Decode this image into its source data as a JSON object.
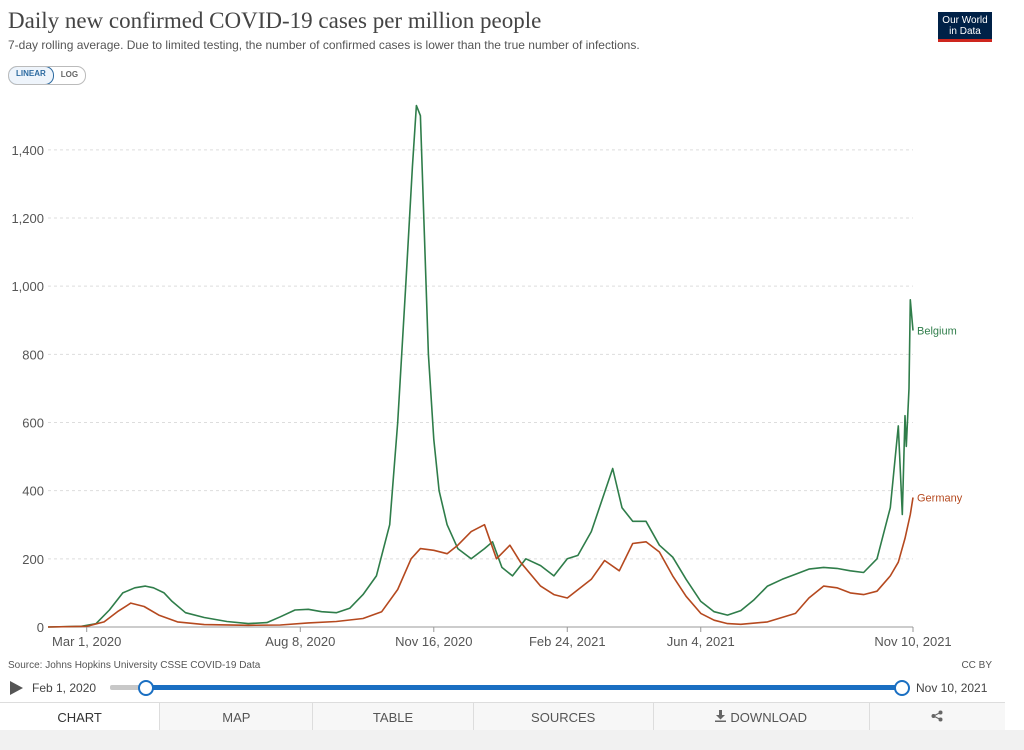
{
  "header": {
    "title": "Daily new confirmed COVID-19 cases per million people",
    "subtitle": "7-day rolling average. Due to limited testing, the number of confirmed cases is lower than the true number of infections.",
    "logo": "Our World in Data"
  },
  "scale_toggle": {
    "linear": "LINEAR",
    "log": "LOG",
    "selected": "LINEAR"
  },
  "footer": {
    "source": "Source: Johns Hopkins University CSSE COVID-19 Data",
    "license": "CC BY"
  },
  "timeline": {
    "start_label": "Feb 1, 2020",
    "end_label": "Nov 10, 2021"
  },
  "tabs": {
    "chart": "CHART",
    "map": "MAP",
    "table": "TABLE",
    "sources": "SOURCES",
    "download": "DOWNLOAD"
  },
  "colors": {
    "belgium": "#2f7d4a",
    "germany": "#b5491f",
    "grid": "#dddddd",
    "accent": "#1a6fc2"
  },
  "chart_data": {
    "type": "line",
    "title": "Daily new confirmed COVID-19 cases per million people",
    "xlabel": "",
    "ylabel": "",
    "x_range": [
      "2020-02-01",
      "2021-11-10"
    ],
    "ylim": [
      0,
      1500
    ],
    "y_ticks": [
      0,
      200,
      400,
      600,
      800,
      1000,
      1200,
      1400
    ],
    "y_tick_labels": [
      "0",
      "200",
      "400",
      "600",
      "800",
      "1,000",
      "1,200",
      "1,400"
    ],
    "x_ticks": [
      "2020-03-01",
      "2020-08-08",
      "2020-11-16",
      "2021-02-24",
      "2021-06-04",
      "2021-11-10"
    ],
    "x_tick_labels": [
      "Mar 1, 2020",
      "Aug 8, 2020",
      "Nov 16, 2020",
      "Feb 24, 2021",
      "Jun 4, 2021",
      "Nov 10, 2021"
    ],
    "grid": "horizontal dashed",
    "legend": "inline labels at line ends",
    "series": [
      {
        "name": "Belgium",
        "color": "#2f7d4a",
        "points": [
          [
            "2020-02-01",
            0
          ],
          [
            "2020-02-26",
            2
          ],
          [
            "2020-03-08",
            10
          ],
          [
            "2020-03-18",
            50
          ],
          [
            "2020-03-28",
            100
          ],
          [
            "2020-04-06",
            115
          ],
          [
            "2020-04-14",
            120
          ],
          [
            "2020-04-20",
            115
          ],
          [
            "2020-04-28",
            100
          ],
          [
            "2020-05-04",
            75
          ],
          [
            "2020-05-14",
            42
          ],
          [
            "2020-05-28",
            28
          ],
          [
            "2020-06-14",
            16
          ],
          [
            "2020-06-30",
            10
          ],
          [
            "2020-07-14",
            13
          ],
          [
            "2020-07-24",
            30
          ],
          [
            "2020-08-04",
            50
          ],
          [
            "2020-08-14",
            52
          ],
          [
            "2020-08-24",
            45
          ],
          [
            "2020-09-04",
            42
          ],
          [
            "2020-09-14",
            55
          ],
          [
            "2020-09-24",
            95
          ],
          [
            "2020-10-04",
            150
          ],
          [
            "2020-10-14",
            300
          ],
          [
            "2020-10-20",
            600
          ],
          [
            "2020-10-26",
            1000
          ],
          [
            "2020-10-31",
            1350
          ],
          [
            "2020-11-03",
            1530
          ],
          [
            "2020-11-06",
            1500
          ],
          [
            "2020-11-09",
            1150
          ],
          [
            "2020-11-12",
            800
          ],
          [
            "2020-11-16",
            550
          ],
          [
            "2020-11-20",
            400
          ],
          [
            "2020-11-26",
            300
          ],
          [
            "2020-12-04",
            230
          ],
          [
            "2020-12-14",
            200
          ],
          [
            "2020-12-24",
            230
          ],
          [
            "2020-12-30",
            250
          ],
          [
            "2021-01-06",
            175
          ],
          [
            "2021-01-14",
            150
          ],
          [
            "2021-01-24",
            200
          ],
          [
            "2021-02-04",
            180
          ],
          [
            "2021-02-14",
            150
          ],
          [
            "2021-02-24",
            200
          ],
          [
            "2021-03-04",
            210
          ],
          [
            "2021-03-14",
            280
          ],
          [
            "2021-03-24",
            395
          ],
          [
            "2021-03-30",
            465
          ],
          [
            "2021-04-06",
            350
          ],
          [
            "2021-04-14",
            310
          ],
          [
            "2021-04-24",
            310
          ],
          [
            "2021-05-04",
            240
          ],
          [
            "2021-05-14",
            205
          ],
          [
            "2021-05-24",
            140
          ],
          [
            "2021-06-04",
            75
          ],
          [
            "2021-06-14",
            45
          ],
          [
            "2021-06-24",
            35
          ],
          [
            "2021-07-04",
            48
          ],
          [
            "2021-07-14",
            80
          ],
          [
            "2021-07-24",
            120
          ],
          [
            "2021-08-04",
            140
          ],
          [
            "2021-08-14",
            155
          ],
          [
            "2021-08-24",
            170
          ],
          [
            "2021-09-04",
            175
          ],
          [
            "2021-09-14",
            172
          ],
          [
            "2021-09-24",
            165
          ],
          [
            "2021-10-04",
            160
          ],
          [
            "2021-10-14",
            200
          ],
          [
            "2021-10-24",
            350
          ],
          [
            "2021-10-30",
            590
          ],
          [
            "2021-11-02",
            330
          ],
          [
            "2021-11-04",
            620
          ],
          [
            "2021-11-05",
            530
          ],
          [
            "2021-11-07",
            700
          ],
          [
            "2021-11-08",
            960
          ],
          [
            "2021-11-10",
            870
          ]
        ]
      },
      {
        "name": "Germany",
        "color": "#b5491f",
        "points": [
          [
            "2020-02-01",
            0
          ],
          [
            "2020-03-01",
            2
          ],
          [
            "2020-03-14",
            15
          ],
          [
            "2020-03-24",
            45
          ],
          [
            "2020-04-03",
            70
          ],
          [
            "2020-04-13",
            60
          ],
          [
            "2020-04-24",
            35
          ],
          [
            "2020-05-08",
            15
          ],
          [
            "2020-05-28",
            7
          ],
          [
            "2020-06-30",
            5
          ],
          [
            "2020-07-24",
            6
          ],
          [
            "2020-08-14",
            12
          ],
          [
            "2020-09-04",
            16
          ],
          [
            "2020-09-24",
            25
          ],
          [
            "2020-10-08",
            45
          ],
          [
            "2020-10-20",
            110
          ],
          [
            "2020-10-30",
            200
          ],
          [
            "2020-11-06",
            230
          ],
          [
            "2020-11-16",
            225
          ],
          [
            "2020-11-26",
            215
          ],
          [
            "2020-12-04",
            240
          ],
          [
            "2020-12-14",
            280
          ],
          [
            "2020-12-24",
            300
          ],
          [
            "2021-01-02",
            200
          ],
          [
            "2021-01-12",
            240
          ],
          [
            "2021-01-20",
            190
          ],
          [
            "2021-02-04",
            120
          ],
          [
            "2021-02-14",
            95
          ],
          [
            "2021-02-24",
            85
          ],
          [
            "2021-03-14",
            140
          ],
          [
            "2021-03-24",
            195
          ],
          [
            "2021-04-04",
            165
          ],
          [
            "2021-04-14",
            245
          ],
          [
            "2021-04-24",
            250
          ],
          [
            "2021-05-04",
            220
          ],
          [
            "2021-05-14",
            150
          ],
          [
            "2021-05-24",
            90
          ],
          [
            "2021-06-04",
            40
          ],
          [
            "2021-06-14",
            20
          ],
          [
            "2021-06-24",
            10
          ],
          [
            "2021-07-04",
            8
          ],
          [
            "2021-07-24",
            15
          ],
          [
            "2021-08-14",
            40
          ],
          [
            "2021-08-24",
            85
          ],
          [
            "2021-09-04",
            120
          ],
          [
            "2021-09-14",
            115
          ],
          [
            "2021-09-24",
            100
          ],
          [
            "2021-10-04",
            95
          ],
          [
            "2021-10-14",
            105
          ],
          [
            "2021-10-24",
            150
          ],
          [
            "2021-10-30",
            190
          ],
          [
            "2021-11-04",
            260
          ],
          [
            "2021-11-08",
            330
          ],
          [
            "2021-11-10",
            380
          ]
        ]
      }
    ]
  }
}
